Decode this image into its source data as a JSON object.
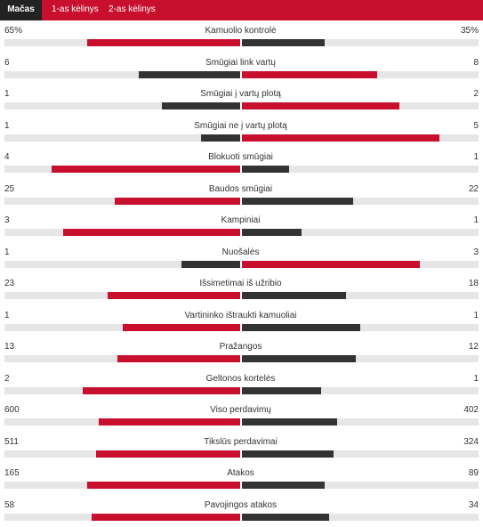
{
  "tabs": [
    {
      "label": "Mačas",
      "active": true
    },
    {
      "label": "1-as kėlinys",
      "active": false
    },
    {
      "label": "2-as kėlinys",
      "active": false
    }
  ],
  "colors": {
    "winner": "#c8102e",
    "loser": "#333333",
    "track": "#e6e6e6"
  },
  "stats": [
    {
      "label": "Kamuolio kontrolė",
      "home": "65%",
      "away": "35%",
      "home_value": 65,
      "away_value": 35
    },
    {
      "label": "Smūgiai link vartų",
      "home": "6",
      "away": "8",
      "home_value": 6,
      "away_value": 8
    },
    {
      "label": "Smūgiai į vartų plotą",
      "home": "1",
      "away": "2",
      "home_value": 1,
      "away_value": 2
    },
    {
      "label": "Smūgiai ne į vartų plotą",
      "home": "1",
      "away": "5",
      "home_value": 1,
      "away_value": 5
    },
    {
      "label": "Blokuoti smūgiai",
      "home": "4",
      "away": "1",
      "home_value": 4,
      "away_value": 1
    },
    {
      "label": "Baudos smūgiai",
      "home": "25",
      "away": "22",
      "home_value": 25,
      "away_value": 22
    },
    {
      "label": "Kampiniai",
      "home": "3",
      "away": "1",
      "home_value": 3,
      "away_value": 1
    },
    {
      "label": "Nuošalės",
      "home": "1",
      "away": "3",
      "home_value": 1,
      "away_value": 3
    },
    {
      "label": "Išsimetimai iš užribio",
      "home": "23",
      "away": "18",
      "home_value": 23,
      "away_value": 18
    },
    {
      "label": "Vartininko ištraukti kamuoliai",
      "home": "1",
      "away": "1",
      "home_value": 1,
      "away_value": 1
    },
    {
      "label": "Pražangos",
      "home": "13",
      "away": "12",
      "home_value": 13,
      "away_value": 12
    },
    {
      "label": "Geltonos kortelės",
      "home": "2",
      "away": "1",
      "home_value": 2,
      "away_value": 1
    },
    {
      "label": "Viso perdavimų",
      "home": "600",
      "away": "402",
      "home_value": 600,
      "away_value": 402
    },
    {
      "label": "Tikslūs perdavimai",
      "home": "511",
      "away": "324",
      "home_value": 511,
      "away_value": 324
    },
    {
      "label": "Atakos",
      "home": "165",
      "away": "89",
      "home_value": 165,
      "away_value": 89
    },
    {
      "label": "Pavojingos atakos",
      "home": "58",
      "away": "34",
      "home_value": 58,
      "away_value": 34
    }
  ]
}
